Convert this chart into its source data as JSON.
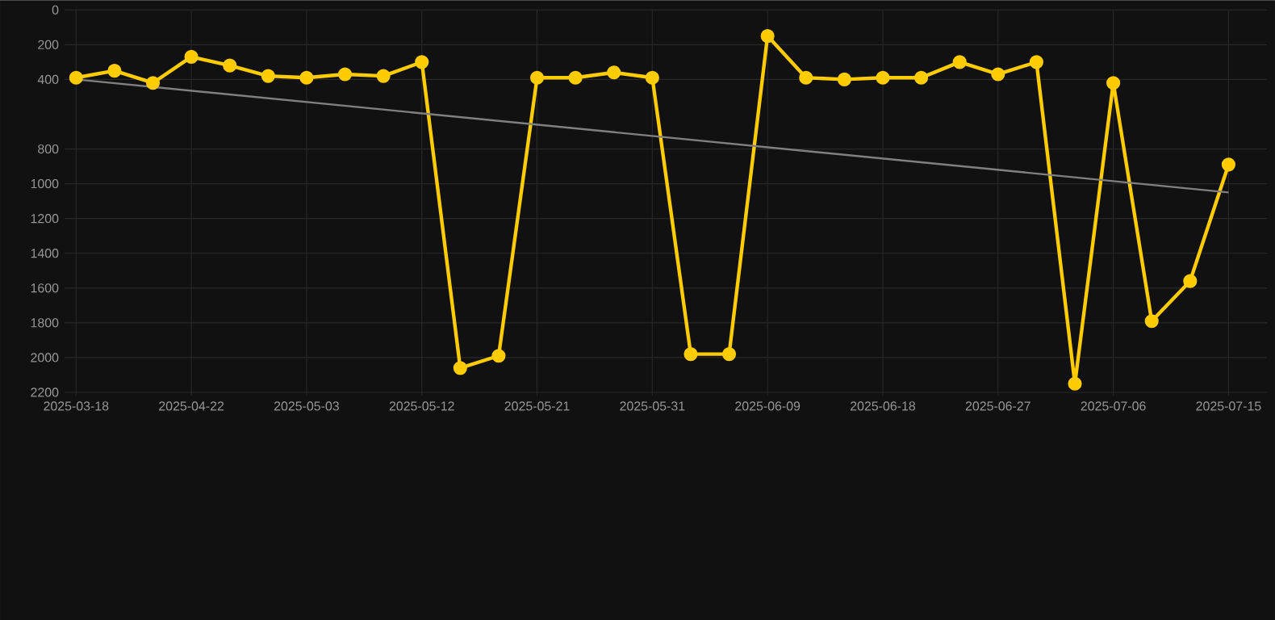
{
  "chart_data": {
    "type": "line",
    "categories": [
      "2025-03-18",
      null,
      null,
      "2025-04-22",
      null,
      null,
      "2025-05-03",
      null,
      null,
      "2025-05-12",
      null,
      null,
      "2025-05-21",
      null,
      null,
      "2025-05-31",
      null,
      null,
      "2025-06-09",
      null,
      null,
      "2025-06-18",
      null,
      null,
      "2025-06-27",
      null,
      null,
      "2025-07-06",
      null,
      null,
      "2025-07-15"
    ],
    "series": [
      {
        "color": "#ffcc00",
        "marker": "circle",
        "values": [
          390,
          350,
          420,
          270,
          320,
          380,
          390,
          370,
          380,
          300,
          2060,
          1990,
          390,
          390,
          360,
          390,
          1980,
          1980,
          150,
          390,
          400,
          390,
          390,
          300,
          370,
          300,
          2150,
          420,
          1790,
          1560,
          890
        ]
      },
      {
        "color": "#808080",
        "marker": "none",
        "values": [
          400,
          null,
          null,
          null,
          null,
          null,
          null,
          null,
          null,
          null,
          null,
          null,
          null,
          null,
          null,
          null,
          null,
          null,
          null,
          null,
          null,
          null,
          null,
          null,
          null,
          null,
          null,
          null,
          null,
          null,
          1050
        ]
      }
    ],
    "ylim": [
      2220,
      0
    ],
    "yticks": [
      0,
      200,
      400,
      800,
      1000,
      1200,
      1400,
      1600,
      1800,
      2000,
      2200
    ],
    "grid": true
  }
}
